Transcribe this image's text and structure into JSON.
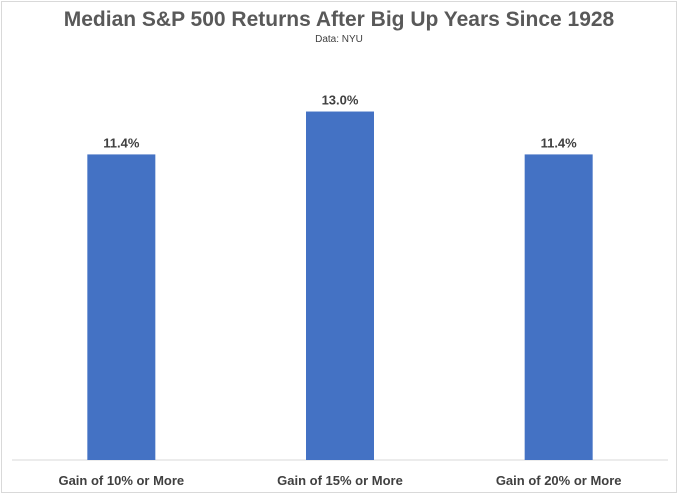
{
  "chart_data": {
    "type": "bar",
    "title": "Median S&P 500 Returns After Big Up Years Since 1928",
    "subtitle": "Data: NYU",
    "categories": [
      "Gain of 10% or More",
      "Gain of 15% or More",
      "Gain of 20% or More"
    ],
    "values": [
      11.4,
      13.0,
      11.4
    ],
    "data_labels": [
      "11.4%",
      "13.0%",
      "11.4%"
    ],
    "ylim": [
      0,
      14.4
    ],
    "grid": false,
    "legend": "none",
    "colors": {
      "bar": "#4472c4",
      "axis": "#d9d9d9",
      "text": "#404040",
      "title": "#595959"
    }
  }
}
